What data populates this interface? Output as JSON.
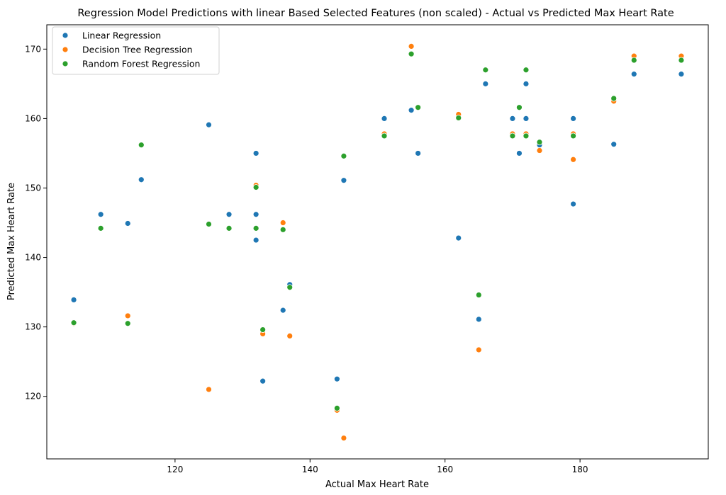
{
  "chart_data": {
    "type": "scatter",
    "title": "Regression Model Predictions with linear Based Selected Features (non scaled) - Actual vs Predicted Max Heart Rate",
    "xlabel": "Actual Max Heart Rate",
    "ylabel": "Predicted Max Heart Rate",
    "xlim": [
      101,
      199
    ],
    "ylim": [
      111,
      173.5
    ],
    "xticks": [
      120,
      140,
      160,
      180
    ],
    "yticks": [
      120,
      130,
      140,
      150,
      160,
      170
    ],
    "grid": false,
    "legend_position": "top-left",
    "series": [
      {
        "name": "Linear Regression",
        "color": "#1f77b4",
        "points": [
          [
            105,
            133.9
          ],
          [
            109,
            146.2
          ],
          [
            113,
            144.9
          ],
          [
            115,
            151.2
          ],
          [
            125,
            159.1
          ],
          [
            128,
            146.2
          ],
          [
            132,
            155.0
          ],
          [
            132,
            146.2
          ],
          [
            132,
            142.5
          ],
          [
            133,
            122.2
          ],
          [
            136,
            132.4
          ],
          [
            137,
            136.1
          ],
          [
            144,
            122.5
          ],
          [
            145,
            151.1
          ],
          [
            151,
            160.0
          ],
          [
            155,
            161.2
          ],
          [
            156,
            155.0
          ],
          [
            162,
            142.8
          ],
          [
            165,
            131.1
          ],
          [
            166,
            165.0
          ],
          [
            170,
            160.0
          ],
          [
            171,
            155.0
          ],
          [
            172,
            165.0
          ],
          [
            172,
            160.0
          ],
          [
            174,
            156.2
          ],
          [
            179,
            160.0
          ],
          [
            179,
            147.7
          ],
          [
            185,
            156.3
          ],
          [
            188,
            166.4
          ],
          [
            195,
            166.4
          ]
        ]
      },
      {
        "name": "Decision Tree Regression",
        "color": "#ff7f0e",
        "points": [
          [
            105,
            130.5
          ],
          [
            109,
            144.2
          ],
          [
            113,
            131.6
          ],
          [
            115,
            156.2
          ],
          [
            125,
            121.0
          ],
          [
            125,
            144.8
          ],
          [
            128,
            144.2
          ],
          [
            132,
            150.4
          ],
          [
            132,
            144.2
          ],
          [
            133,
            129.0
          ],
          [
            136,
            145.0
          ],
          [
            137,
            128.7
          ],
          [
            144,
            118.0
          ],
          [
            145,
            114.0
          ],
          [
            151,
            157.8
          ],
          [
            155,
            170.4
          ],
          [
            156,
            161.6
          ],
          [
            162,
            160.6
          ],
          [
            165,
            126.7
          ],
          [
            166,
            167.0
          ],
          [
            170,
            157.8
          ],
          [
            171,
            161.6
          ],
          [
            172,
            157.8
          ],
          [
            174,
            155.4
          ],
          [
            179,
            154.1
          ],
          [
            179,
            157.8
          ],
          [
            185,
            162.5
          ],
          [
            188,
            169.0
          ],
          [
            195,
            169.0
          ]
        ]
      },
      {
        "name": "Random Forest Regression",
        "color": "#2ca02c",
        "points": [
          [
            105,
            130.6
          ],
          [
            109,
            144.2
          ],
          [
            113,
            130.5
          ],
          [
            115,
            156.2
          ],
          [
            125,
            144.8
          ],
          [
            128,
            144.2
          ],
          [
            132,
            150.1
          ],
          [
            132,
            144.2
          ],
          [
            133,
            129.6
          ],
          [
            136,
            144.0
          ],
          [
            137,
            135.7
          ],
          [
            144,
            118.3
          ],
          [
            145,
            154.6
          ],
          [
            151,
            157.5
          ],
          [
            155,
            169.3
          ],
          [
            156,
            161.6
          ],
          [
            162,
            160.1
          ],
          [
            165,
            134.6
          ],
          [
            166,
            167.0
          ],
          [
            170,
            157.5
          ],
          [
            171,
            161.6
          ],
          [
            172,
            167.0
          ],
          [
            172,
            157.5
          ],
          [
            174,
            156.6
          ],
          [
            179,
            157.5
          ],
          [
            185,
            162.9
          ],
          [
            188,
            168.4
          ],
          [
            195,
            168.4
          ]
        ]
      }
    ]
  }
}
